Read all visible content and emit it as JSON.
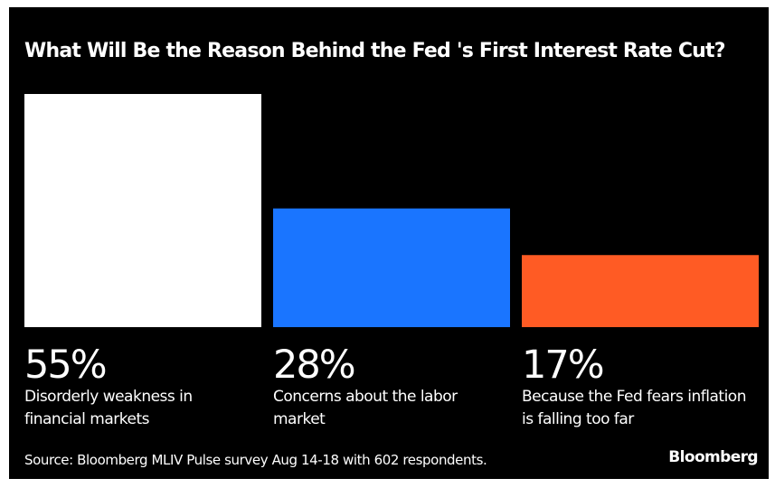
{
  "chart_data": {
    "type": "bar",
    "title": "What Will Be the Reason Behind the Fed 's First Interest Rate Cut?",
    "categories": [
      [
        "Disorderly weakness in",
        "financial markets"
      ],
      [
        "Concerns about the labor",
        "market"
      ],
      [
        "Because the Fed fears inflation",
        "is falling too far"
      ]
    ],
    "values": [
      55,
      28,
      17
    ],
    "value_labels": [
      "55%",
      "28%",
      "17%"
    ],
    "colors": [
      "#ffffff",
      "#1a75ff",
      "#ff5b24"
    ],
    "ylim": [
      0,
      55
    ],
    "grid": false,
    "legend": "none"
  },
  "source": "Source: Bloomberg MLIV Pulse survey Aug 14-18 with 602 respondents.",
  "brand": "Bloomberg",
  "colors": {
    "background": "#000000",
    "text": "#ffffff"
  }
}
